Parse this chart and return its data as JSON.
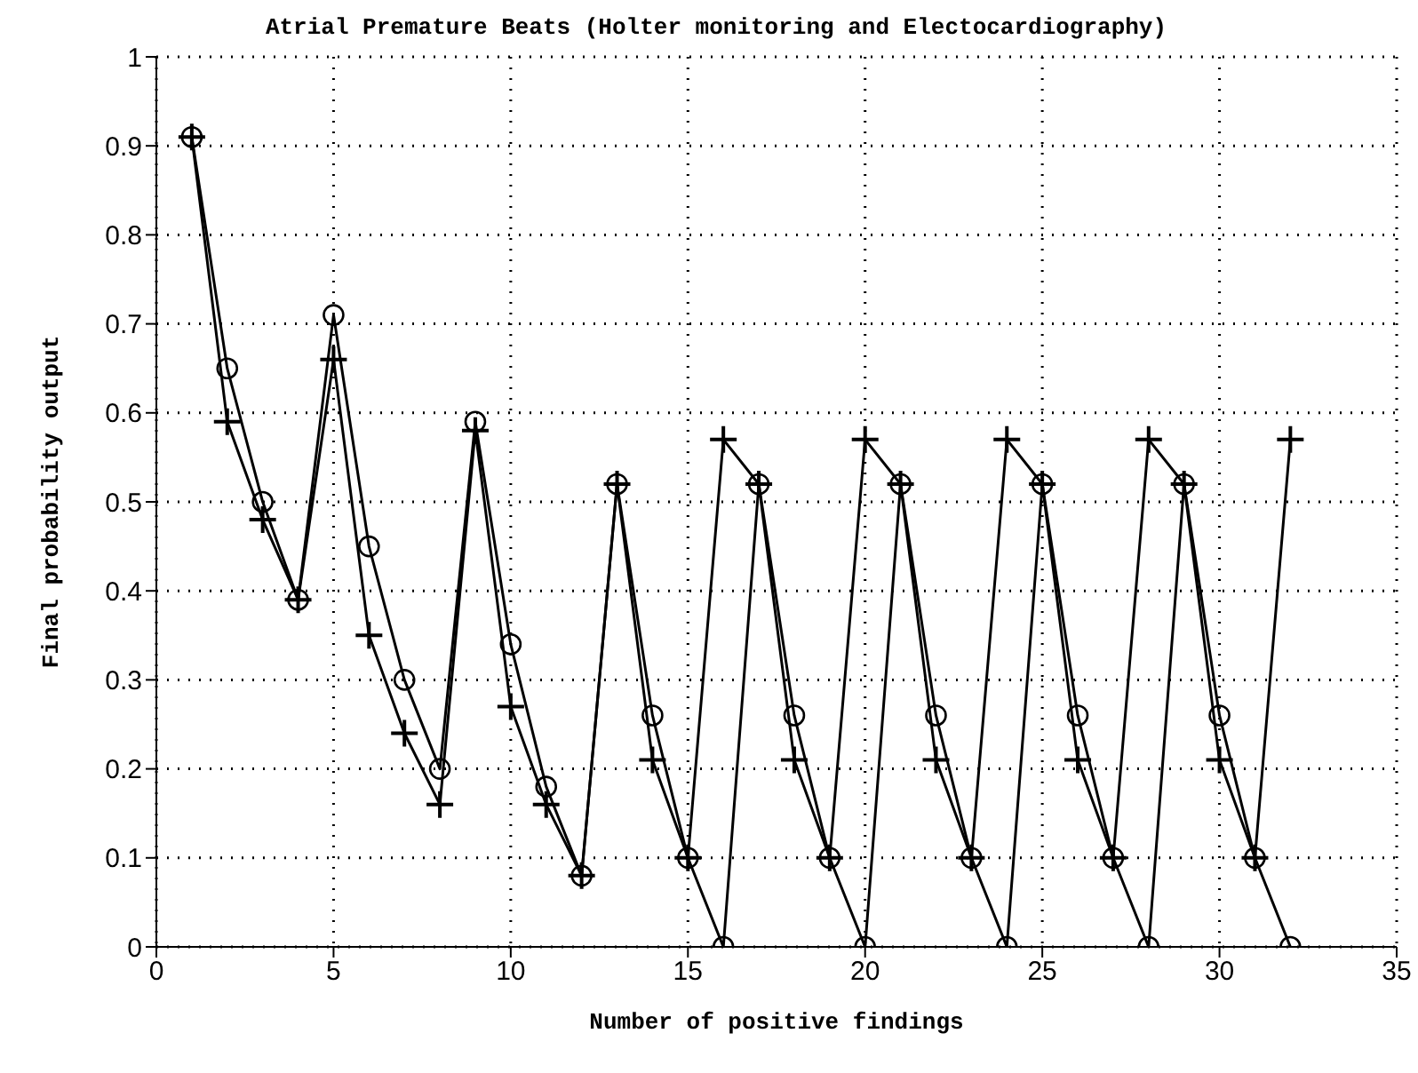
{
  "chart_data": {
    "type": "line",
    "title": "Atrial Premature Beats (Holter monitoring and Electocardiography)",
    "xlabel": "Number of positive findings",
    "ylabel": "Final probability output",
    "x": [
      1,
      2,
      3,
      4,
      5,
      6,
      7,
      8,
      9,
      10,
      11,
      12,
      13,
      14,
      15,
      16,
      17,
      18,
      19,
      20,
      21,
      22,
      23,
      24,
      25,
      26,
      27,
      28,
      29,
      30,
      31,
      32
    ],
    "series": [
      {
        "color": "#000000",
        "marker": "circle",
        "values": [
          0.91,
          0.65,
          0.5,
          0.39,
          0.71,
          0.45,
          0.3,
          0.2,
          0.59,
          0.34,
          0.18,
          0.08,
          0.52,
          0.26,
          0.1,
          0,
          0.52,
          0.26,
          0.1,
          0,
          0.52,
          0.26,
          0.1,
          0,
          0.52,
          0.26,
          0.1,
          0,
          0.52,
          0.26,
          0.1,
          0
        ]
      },
      {
        "color": "#000000",
        "marker": "cross",
        "values": [
          0.91,
          0.59,
          0.48,
          0.39,
          0.66,
          0.35,
          0.24,
          0.16,
          0.58,
          0.27,
          0.16,
          0.08,
          0.52,
          0.21,
          0.1,
          0.57,
          0.52,
          0.21,
          0.1,
          0.57,
          0.52,
          0.21,
          0.1,
          0.57,
          0.52,
          0.21,
          0.1,
          0.57,
          0.52,
          0.21,
          0.1,
          0.57
        ]
      }
    ],
    "xlim": [
      0,
      35
    ],
    "xticks": [
      0,
      5,
      10,
      15,
      20,
      25,
      30,
      35
    ],
    "ylim": [
      0,
      1
    ],
    "yticks": [
      0,
      0.1,
      0.2,
      0.3,
      0.4,
      0.5,
      0.6,
      0.7,
      0.8,
      0.9,
      1
    ],
    "grid": true,
    "line_style": "solid"
  }
}
